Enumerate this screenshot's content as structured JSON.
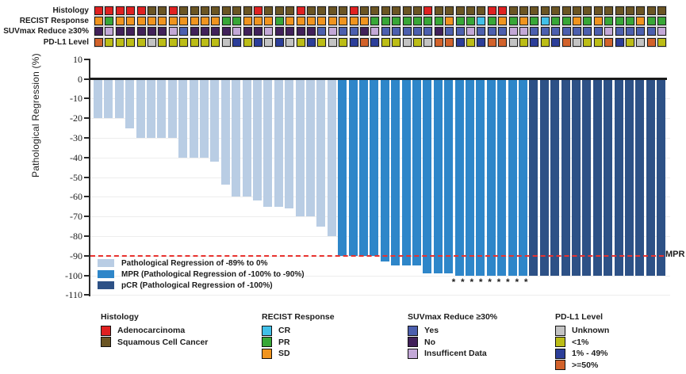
{
  "chart_data": {
    "type": "bar",
    "title": "",
    "ylabel": "Pathological Regression (%)",
    "xlabel": "",
    "ylim": [
      -110,
      10
    ],
    "yticks": [
      10,
      0,
      -10,
      -20,
      -30,
      -40,
      -50,
      -60,
      -70,
      -80,
      -90,
      -100,
      -110
    ],
    "grid": "horizontal-light",
    "n_patients": 54,
    "values": [
      -20,
      -20,
      -20,
      -25,
      -30,
      -30,
      -30,
      -30,
      -40,
      -40,
      -40,
      -42,
      -54,
      -60,
      -60,
      -62,
      -65,
      -65,
      -66,
      -70,
      -70,
      -75,
      -80,
      -90,
      -90,
      -90,
      -90,
      -93,
      -95,
      -95,
      -95,
      -99,
      -99,
      -99,
      -100,
      -100,
      -100,
      -100,
      -100,
      -100,
      -100,
      -100,
      -100,
      -100,
      -100,
      -100,
      -100,
      -100,
      -100,
      -100,
      -100,
      -100,
      -100,
      -100
    ],
    "bar_groups": [
      {
        "name": "Pathological Regression of -89% to 0%",
        "color": "#b9cde4",
        "from": 1,
        "to": 23
      },
      {
        "name": "MPR (Pathological Regression of -100% to -90%)",
        "color": "#2e86c9",
        "from": 24,
        "to": 41
      },
      {
        "name": "pCR (Pathological Regression of -100%)",
        "color": "#2d5186",
        "from": 42,
        "to": 54
      }
    ],
    "mpr_threshold": {
      "value": -90,
      "label": "MPR",
      "line_color": "#e8322e",
      "line_style": "dashed"
    },
    "asterisks": {
      "count": 9,
      "symbol": "*",
      "note": "marked below the -100% bars of the MPR group"
    },
    "annotations": [
      {
        "label": "Histology",
        "palette": {
          "A": "#e02121",
          "S": "#6b5523"
        },
        "legend": {
          "A": "Adenocarcinoma",
          "S": "Squamous Cell Cancer"
        },
        "cells": [
          "A",
          "A",
          "A",
          "A",
          "A",
          "S",
          "S",
          "A",
          "S",
          "S",
          "S",
          "S",
          "S",
          "S",
          "S",
          "A",
          "S",
          "S",
          "S",
          "A",
          "S",
          "S",
          "S",
          "S",
          "A",
          "S",
          "S",
          "S",
          "S",
          "S",
          "S",
          "A",
          "S",
          "S",
          "S",
          "S",
          "S",
          "A",
          "A",
          "S",
          "S",
          "S",
          "S",
          "S",
          "S",
          "S",
          "S",
          "S",
          "S",
          "S",
          "S",
          "S",
          "S",
          "S"
        ]
      },
      {
        "label": "RECIST Response",
        "palette": {
          "O": "#f0941e",
          "G": "#38a737",
          "C": "#41c0e8"
        },
        "legend": {
          "O": "SD",
          "G": "PR",
          "C": "CR"
        },
        "cells": [
          "O",
          "G",
          "O",
          "O",
          "O",
          "O",
          "O",
          "O",
          "O",
          "O",
          "O",
          "O",
          "G",
          "G",
          "O",
          "O",
          "O",
          "G",
          "O",
          "O",
          "O",
          "O",
          "O",
          "O",
          "O",
          "O",
          "G",
          "G",
          "G",
          "G",
          "G",
          "G",
          "G",
          "O",
          "G",
          "G",
          "C",
          "G",
          "O",
          "G",
          "O",
          "G",
          "C",
          "G",
          "G",
          "O",
          "G",
          "O",
          "G",
          "G",
          "G",
          "O",
          "G",
          "G"
        ]
      },
      {
        "label": "SUVmax Reduce ≥30%",
        "palette": {
          "Y": "#4c5fae",
          "N": "#41215a",
          "I": "#c3a8d7"
        },
        "legend": {
          "Y": "Yes",
          "N": "No",
          "I": "Insufficent Data"
        },
        "cells": [
          "N",
          "I",
          "N",
          "N",
          "N",
          "N",
          "N",
          "I",
          "Y",
          "N",
          "N",
          "N",
          "N",
          "I",
          "N",
          "N",
          "I",
          "N",
          "N",
          "N",
          "N",
          "Y",
          "I",
          "Y",
          "Y",
          "N",
          "I",
          "Y",
          "Y",
          "Y",
          "Y",
          "Y",
          "N",
          "Y",
          "Y",
          "I",
          "Y",
          "Y",
          "Y",
          "I",
          "I",
          "Y",
          "Y",
          "Y",
          "Y",
          "Y",
          "Y",
          "Y",
          "I",
          "Y",
          "Y",
          "Y",
          "Y",
          "I"
        ]
      },
      {
        "label": "PD-L1 Level",
        "palette": {
          "U": "#c3c3c3",
          "L": "#bcbd16",
          "M": "#2c3e99",
          "H": "#d2622b"
        },
        "legend": {
          "U": "Unknown",
          "L": "<1%",
          "M": "1% - 49%",
          "H": ">=50%"
        },
        "cells": [
          "H",
          "L",
          "L",
          "L",
          "L",
          "U",
          "L",
          "L",
          "L",
          "L",
          "L",
          "L",
          "U",
          "M",
          "L",
          "M",
          "U",
          "M",
          "U",
          "L",
          "M",
          "L",
          "U",
          "L",
          "M",
          "H",
          "M",
          "L",
          "L",
          "U",
          "L",
          "U",
          "H",
          "H",
          "M",
          "L",
          "M",
          "H",
          "H",
          "U",
          "L",
          "M",
          "L",
          "M",
          "H",
          "U",
          "L",
          "L",
          "H",
          "M",
          "L",
          "U",
          "H",
          "L"
        ]
      }
    ]
  },
  "legends": {
    "histology": {
      "title": "Histology",
      "items": [
        {
          "color": "#e02121",
          "label": "Adenocarcinoma"
        },
        {
          "color": "#6b5523",
          "label": "Squamous Cell Cancer"
        }
      ]
    },
    "recist": {
      "title": "RECIST Response",
      "items": [
        {
          "color": "#41c0e8",
          "label": "CR"
        },
        {
          "color": "#38a737",
          "label": "PR"
        },
        {
          "color": "#f0941e",
          "label": "SD"
        }
      ]
    },
    "suvmax": {
      "title": "SUVmax Reduce ≥30%",
      "items": [
        {
          "color": "#4c5fae",
          "label": "Yes"
        },
        {
          "color": "#41215a",
          "label": "No"
        },
        {
          "color": "#c3a8d7",
          "label": "Insufficent Data"
        }
      ]
    },
    "pdl1": {
      "title": "PD-L1 Level",
      "items": [
        {
          "color": "#c3c3c3",
          "label": "Unknown"
        },
        {
          "color": "#bcbd16",
          "label": "<1%"
        },
        {
          "color": "#2c3e99",
          "label": "1% - 49%"
        },
        {
          "color": "#d2622b",
          "label": ">=50%"
        }
      ]
    }
  }
}
